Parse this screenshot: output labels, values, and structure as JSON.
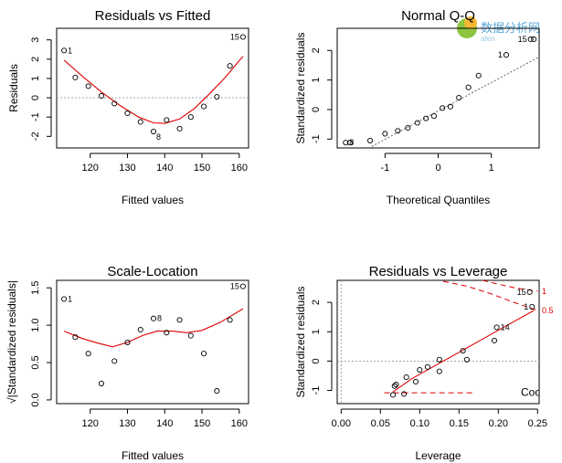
{
  "watermark": {
    "text": "数据分析网",
    "subtext": "afen"
  },
  "colors": {
    "points": "#000000",
    "smooth": "#dd0000",
    "reference": "#999999"
  },
  "chart_data": [
    {
      "id": "rvf",
      "type": "scatter",
      "title": "Residuals vs Fitted",
      "xlabel": "Fitted values",
      "ylabel": "Residuals",
      "xlim": [
        111,
        162.5
      ],
      "ylim": [
        -2.6,
        3.6
      ],
      "xticks": [
        120,
        130,
        140,
        150,
        160
      ],
      "yticks": [
        -2,
        -1,
        0,
        1,
        2,
        3
      ],
      "yticklabels": [
        "-2",
        "-1",
        "0",
        "1",
        "2",
        "3"
      ],
      "hline": 0,
      "points": [
        [
          113,
          2.45
        ],
        [
          116,
          1.05
        ],
        [
          119.5,
          0.6
        ],
        [
          123,
          0.1
        ],
        [
          126.5,
          -0.3
        ],
        [
          130,
          -0.8
        ],
        [
          133.5,
          -1.25
        ],
        [
          137,
          -1.75
        ],
        [
          140.5,
          -1.15
        ],
        [
          144,
          -1.6
        ],
        [
          147,
          -1.0
        ],
        [
          150.5,
          -0.45
        ],
        [
          154,
          0.05
        ],
        [
          157.5,
          1.65
        ],
        [
          161,
          3.15
        ]
      ],
      "smooth": [
        [
          113,
          1.95
        ],
        [
          118,
          1.1
        ],
        [
          123,
          0.3
        ],
        [
          128,
          -0.4
        ],
        [
          133,
          -1.0
        ],
        [
          137,
          -1.3
        ],
        [
          140,
          -1.33
        ],
        [
          144,
          -1.1
        ],
        [
          148,
          -0.55
        ],
        [
          152,
          0.2
        ],
        [
          156,
          1.0
        ],
        [
          161,
          2.15
        ]
      ],
      "point_labels": [
        {
          "x": 113,
          "y": 2.45,
          "text": "1",
          "side": "right"
        },
        {
          "x": 137,
          "y": -1.75,
          "text": "8",
          "side": "below-right"
        },
        {
          "x": 161,
          "y": 3.15,
          "text": "15",
          "side": "left"
        }
      ]
    },
    {
      "id": "qq",
      "type": "scatter",
      "title": "Normal Q-Q",
      "xlabel": "Theoretical Quantiles",
      "ylabel": "Standardized residuals",
      "xlim": [
        -1.9,
        1.9
      ],
      "ylim": [
        -1.3,
        2.75
      ],
      "xticks": [
        -1,
        0,
        1
      ],
      "xticklabels": [
        "-1",
        "0",
        "1"
      ],
      "yticks": [
        -1,
        0,
        1,
        2
      ],
      "yticklabels": [
        "-1",
        "0",
        "1",
        "2"
      ],
      "refline": [
        [
          -1.25,
          -1.25
        ],
        [
          1.9,
          1.78
        ]
      ],
      "points": [
        [
          -1.74,
          -1.12
        ],
        [
          -1.66,
          -1.12
        ],
        [
          -1.28,
          -1.05
        ],
        [
          -1.0,
          -0.82
        ],
        [
          -0.76,
          -0.72
        ],
        [
          -0.57,
          -0.62
        ],
        [
          -0.39,
          -0.45
        ],
        [
          -0.23,
          -0.3
        ],
        [
          -0.08,
          -0.22
        ],
        [
          0.08,
          0.05
        ],
        [
          0.23,
          0.1
        ],
        [
          0.39,
          0.4
        ],
        [
          0.57,
          0.75
        ],
        [
          0.76,
          1.15
        ],
        [
          1.28,
          1.85
        ],
        [
          1.74,
          2.38
        ],
        [
          1.8,
          2.38
        ]
      ],
      "point_labels": [
        {
          "x": -1.74,
          "y": -1.12,
          "text": "8",
          "side": "right"
        },
        {
          "x": 1.28,
          "y": 1.85,
          "text": "1",
          "side": "left"
        },
        {
          "x": 1.74,
          "y": 2.38,
          "text": "15",
          "side": "left"
        }
      ]
    },
    {
      "id": "sl",
      "type": "scatter",
      "title": "Scale-Location",
      "xlabel": "Fitted values",
      "ylabel": "√|Standardized residuals|",
      "xlim": [
        111,
        162.5
      ],
      "ylim": [
        -0.05,
        1.6
      ],
      "xticks": [
        120,
        130,
        140,
        150,
        160
      ],
      "yticks": [
        0.0,
        0.5,
        1.0,
        1.5
      ],
      "yticklabels": [
        "0.0",
        "0.5",
        "1.0",
        "1.5"
      ],
      "points": [
        [
          113,
          1.35
        ],
        [
          116,
          0.84
        ],
        [
          119.5,
          0.62
        ],
        [
          123,
          0.22
        ],
        [
          126.5,
          0.52
        ],
        [
          130,
          0.77
        ],
        [
          133.5,
          0.94
        ],
        [
          137,
          1.09
        ],
        [
          140.5,
          0.9
        ],
        [
          144,
          1.07
        ],
        [
          147,
          0.86
        ],
        [
          150.5,
          0.62
        ],
        [
          154,
          0.12
        ],
        [
          157.5,
          1.07
        ],
        [
          161,
          1.52
        ]
      ],
      "smooth": [
        [
          113,
          0.92
        ],
        [
          118,
          0.82
        ],
        [
          122,
          0.76
        ],
        [
          126,
          0.71
        ],
        [
          130,
          0.77
        ],
        [
          134,
          0.86
        ],
        [
          138,
          0.92
        ],
        [
          142,
          0.92
        ],
        [
          146,
          0.9
        ],
        [
          150,
          0.93
        ],
        [
          155,
          1.04
        ],
        [
          161,
          1.22
        ]
      ],
      "point_labels": [
        {
          "x": 113,
          "y": 1.35,
          "text": "1",
          "side": "right"
        },
        {
          "x": 137,
          "y": 1.09,
          "text": "8",
          "side": "right"
        },
        {
          "x": 161,
          "y": 1.52,
          "text": "15",
          "side": "left"
        }
      ]
    },
    {
      "id": "rvl",
      "type": "scatter",
      "title": "Residuals vs Leverage",
      "xlabel": "Leverage",
      "ylabel": "Standardized residuals",
      "xlim": [
        -0.005,
        0.252
      ],
      "ylim": [
        -1.45,
        2.75
      ],
      "xticks": [
        0.0,
        0.05,
        0.1,
        0.15,
        0.2,
        0.25
      ],
      "xticklabels": [
        "0.00",
        "0.05",
        "0.10",
        "0.15",
        "0.20",
        "0.25"
      ],
      "yticks": [
        -1,
        0,
        1,
        2
      ],
      "yticklabels": [
        "-1",
        "0",
        "1",
        "2"
      ],
      "hline": 0,
      "vline": 0,
      "points": [
        [
          0.066,
          -1.15
        ],
        [
          0.068,
          -0.85
        ],
        [
          0.07,
          -0.8
        ],
        [
          0.08,
          -1.12
        ],
        [
          0.083,
          -0.55
        ],
        [
          0.095,
          -0.7
        ],
        [
          0.1,
          -0.3
        ],
        [
          0.11,
          -0.2
        ],
        [
          0.125,
          -0.35
        ],
        [
          0.125,
          0.05
        ],
        [
          0.155,
          0.35
        ],
        [
          0.16,
          0.05
        ],
        [
          0.195,
          0.7
        ],
        [
          0.198,
          1.15
        ],
        [
          0.24,
          2.35
        ],
        [
          0.243,
          1.85
        ]
      ],
      "smooth": [
        [
          0.066,
          -1.05
        ],
        [
          0.09,
          -0.6
        ],
        [
          0.12,
          -0.15
        ],
        [
          0.15,
          0.3
        ],
        [
          0.18,
          0.75
        ],
        [
          0.21,
          1.2
        ],
        [
          0.245,
          1.72
        ]
      ],
      "cook_curves": [
        {
          "label": "1",
          "points": [
            [
              0.18,
              2.75
            ],
            [
              0.2,
              2.62
            ],
            [
              0.22,
              2.5
            ],
            [
              0.25,
              2.38
            ]
          ]
        },
        {
          "label": "0.5",
          "points": [
            [
              0.13,
              2.72
            ],
            [
              0.16,
              2.55
            ],
            [
              0.19,
              2.3
            ],
            [
              0.22,
              2.0
            ],
            [
              0.25,
              1.72
            ]
          ]
        }
      ],
      "cook_segment": [
        [
          0.055,
          -1.08
        ],
        [
          0.17,
          -1.08
        ]
      ],
      "legend_text": "Coo",
      "point_labels": [
        {
          "x": 0.24,
          "y": 2.35,
          "text": "15",
          "side": "left"
        },
        {
          "x": 0.243,
          "y": 1.85,
          "text": "1",
          "side": "left"
        },
        {
          "x": 0.198,
          "y": 1.15,
          "text": "14",
          "side": "right"
        }
      ]
    }
  ]
}
